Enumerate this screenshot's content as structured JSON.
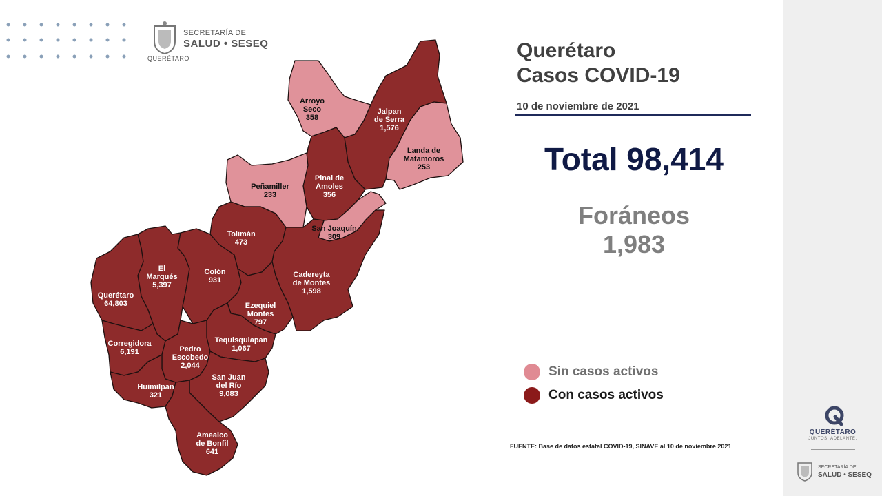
{
  "header": {
    "logo_line1": "SECRETARÍA DE",
    "logo_line2": "SALUD • SESEQ",
    "logo_line3": "QUERÉTARO"
  },
  "title": {
    "line1": "Querétaro",
    "line2": "Casos COVID-19",
    "date": "10 de noviembre de 2021"
  },
  "total": "Total 98,414",
  "foraneos": {
    "label": "Foráneos",
    "value": "1,983"
  },
  "legend": [
    {
      "label": "Sin casos activos",
      "color": "#e08a93",
      "text_color": "#707070"
    },
    {
      "label": "Con casos activos",
      "color": "#8b1a1a",
      "text_color": "#1a1a1a"
    }
  ],
  "source": "FUENTE: Base de datos estatal COVID-19, SINAVE al 10 de noviembre 2021",
  "colors": {
    "active": "#8e2b2b",
    "inactive": "#e0929a",
    "border": "#1e1010"
  },
  "municipalities": [
    {
      "id": "arroyo-seco",
      "name": [
        "Arroyo",
        "Seco"
      ],
      "cases": "358",
      "active": false
    },
    {
      "id": "jalpan",
      "name": [
        "Jalpan",
        "de Serra"
      ],
      "cases": "1,576",
      "active": true
    },
    {
      "id": "landa",
      "name": [
        "Landa de",
        "Matamoros"
      ],
      "cases": "253",
      "active": false
    },
    {
      "id": "pinal",
      "name": [
        "Pinal de",
        "Amoles"
      ],
      "cases": "356",
      "active": true
    },
    {
      "id": "penamiller",
      "name": [
        "Peñamiller"
      ],
      "cases": "233",
      "active": false
    },
    {
      "id": "san-joaquin",
      "name": [
        "San Joaquín"
      ],
      "cases": "309",
      "active": false
    },
    {
      "id": "toliman",
      "name": [
        "Tolimán"
      ],
      "cases": "473",
      "active": true
    },
    {
      "id": "cadereyta",
      "name": [
        "Cadereyta",
        "de Montes"
      ],
      "cases": "1,598",
      "active": true
    },
    {
      "id": "el-marques",
      "name": [
        "El",
        "Marqués"
      ],
      "cases": "5,397",
      "active": true
    },
    {
      "id": "colon",
      "name": [
        "Colón"
      ],
      "cases": "931",
      "active": true
    },
    {
      "id": "queretaro",
      "name": [
        "Querétaro"
      ],
      "cases": "64,803",
      "active": true
    },
    {
      "id": "ezequiel",
      "name": [
        "Ezequiel",
        "Montes"
      ],
      "cases": "797",
      "active": true
    },
    {
      "id": "corregidora",
      "name": [
        "Corregidora"
      ],
      "cases": "6,191",
      "active": true
    },
    {
      "id": "tequisquiapan",
      "name": [
        "Tequisquiapan"
      ],
      "cases": "1,067",
      "active": true
    },
    {
      "id": "pedro-escobedo",
      "name": [
        "Pedro",
        "Escobedo"
      ],
      "cases": "2,044",
      "active": true
    },
    {
      "id": "huimilpan",
      "name": [
        "Huimilpan"
      ],
      "cases": "321",
      "active": true
    },
    {
      "id": "san-juan",
      "name": [
        "San Juan",
        "del Río"
      ],
      "cases": "9,083",
      "active": true
    },
    {
      "id": "amealco",
      "name": [
        "Amealco",
        "de Bonfil"
      ],
      "cases": "641",
      "active": true
    }
  ],
  "right_panel": {
    "brand": "QUERÉTARO",
    "tagline": "JUNTOS, ADELANTE.",
    "logo_line1": "SECRETARÍA DE",
    "logo_line2": "SALUD • SESEQ"
  }
}
